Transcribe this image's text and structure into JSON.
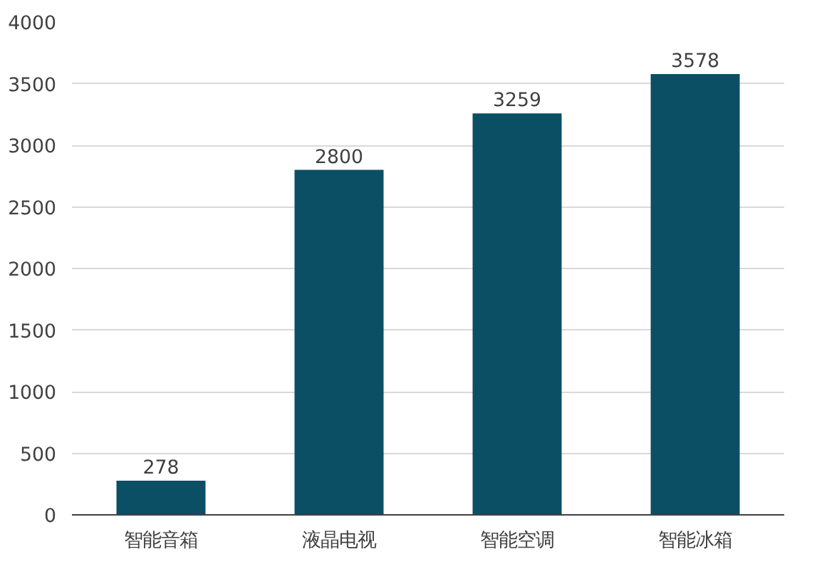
{
  "chart_data": {
    "type": "bar",
    "categories": [
      "智能音箱",
      "液晶电视",
      "智能空调",
      "智能冰箱"
    ],
    "values": [
      278,
      2800,
      3259,
      3578
    ],
    "color": "#0b4f64",
    "ylim": [
      0,
      4000
    ],
    "yticks": [
      0,
      500,
      1000,
      1500,
      2000,
      2500,
      3000,
      3500,
      4000
    ],
    "grid": "y",
    "data_labels": true
  }
}
